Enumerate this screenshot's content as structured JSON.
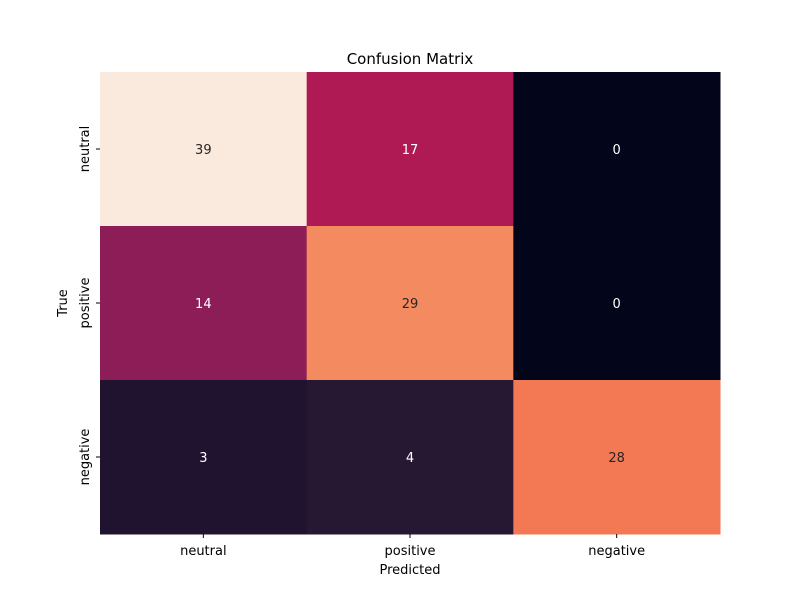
{
  "chart_data": {
    "type": "heatmap",
    "title": "Confusion Matrix",
    "xlabel": "Predicted",
    "ylabel": "True",
    "x_categories": [
      "neutral",
      "positive",
      "negative"
    ],
    "y_categories": [
      "neutral",
      "positive",
      "negative"
    ],
    "values": [
      [
        39,
        17,
        0
      ],
      [
        14,
        29,
        0
      ],
      [
        3,
        4,
        28
      ]
    ],
    "cell_colors": [
      [
        "#faeade",
        "#b01a54",
        "#03051a"
      ],
      [
        "#8c1d56",
        "#f48a60",
        "#03051a"
      ],
      [
        "#1f1330",
        "#261733",
        "#f37955"
      ]
    ],
    "text_colors": [
      [
        "#262626",
        "#ffffff",
        "#ffffff"
      ],
      [
        "#ffffff",
        "#262626",
        "#ffffff"
      ],
      [
        "#ffffff",
        "#ffffff",
        "#262626"
      ]
    ],
    "colormap": "rocket",
    "colorbar": false,
    "grid": false
  }
}
